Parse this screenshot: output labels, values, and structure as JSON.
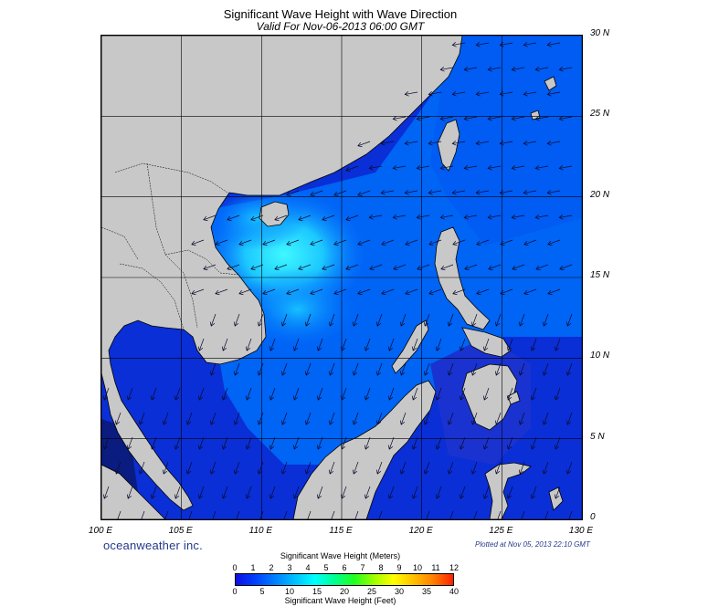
{
  "header": {
    "title": "Significant Wave Height with Wave Direction",
    "subtitle": "Valid For Nov-06-2013 06:00 GMT"
  },
  "axes": {
    "lat_labels": [
      "30 N",
      "25 N",
      "20 N",
      "15 N",
      "10 N",
      "5 N",
      "0"
    ],
    "lat_values": [
      30,
      25,
      20,
      15,
      10,
      5,
      0
    ],
    "lon_labels": [
      "100 E",
      "105 E",
      "110 E",
      "115 E",
      "120 E",
      "125 E",
      "130 E"
    ],
    "lon_values": [
      100,
      105,
      110,
      115,
      120,
      125,
      130
    ],
    "lon_range": [
      100,
      130
    ],
    "lat_range": [
      0,
      30
    ]
  },
  "branding": {
    "company": "oceanweather inc.",
    "plotted": "Plotted at Nov 05, 2013 22:10 GMT"
  },
  "colorbar": {
    "title_meters": "Significant Wave Height (Meters)",
    "title_feet": "Significant Wave Height (Feet)",
    "meter_ticks": [
      "0",
      "1",
      "2",
      "3",
      "4",
      "5",
      "6",
      "7",
      "8",
      "9",
      "10",
      "11",
      "12"
    ],
    "feet_ticks": [
      "0",
      "5",
      "10",
      "15",
      "20",
      "25",
      "30",
      "35",
      "40"
    ],
    "colors": [
      "#1010e0",
      "#0040ff",
      "#0080ff",
      "#00c0ff",
      "#00ffff",
      "#00ff90",
      "#20ff20",
      "#a0ff00",
      "#ffff00",
      "#ffc000",
      "#ff8000",
      "#ff2000"
    ]
  },
  "colors": {
    "land": "#c8c8c8",
    "ocean_low": "#1030d8",
    "ocean_mid": "#0070ff",
    "ocean_high": "#00f0ff",
    "arrow": "#0a0a2a"
  }
}
